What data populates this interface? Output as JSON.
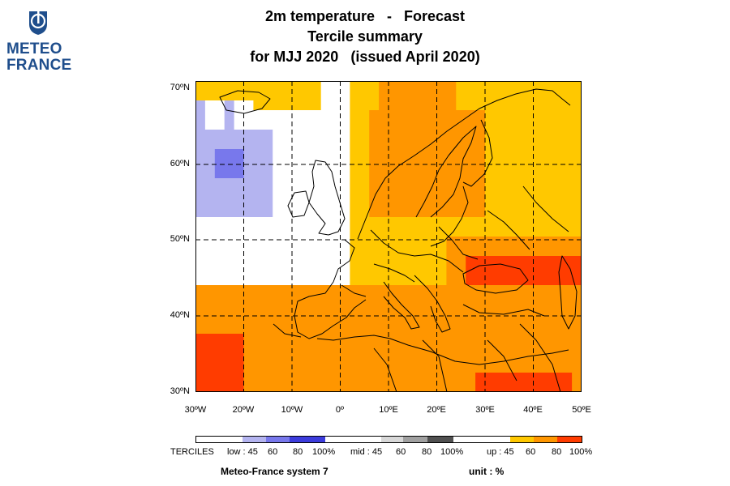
{
  "logo": {
    "line1": "METEO",
    "line2": "FRANCE",
    "color": "#1f4e8c"
  },
  "title": {
    "line1": "2m temperature   -   Forecast",
    "line2": "Tercile summary",
    "line3": "for MJJ 2020   (issued April 2020)"
  },
  "map": {
    "region": "Europe",
    "lon_range": [
      -30,
      50
    ],
    "lat_range": [
      30,
      70
    ],
    "lat_labels": [
      "70ºN",
      "60ºN",
      "50ºN",
      "40ºN",
      "30ºN"
    ],
    "lon_labels": [
      "30ºW",
      "20ºW",
      "10ºW",
      "0º",
      "10ºE",
      "20ºE",
      "30ºE",
      "40ºE",
      "50ºE"
    ],
    "grid": "dashed every 10 degrees"
  },
  "legend": {
    "title": "TERCILES",
    "low_label": "low : 45",
    "mid_label": "mid : 45",
    "up_label": "up : 45",
    "ticks": [
      "60",
      "80",
      "100%"
    ],
    "low_colors": [
      "#b4b4f0",
      "#7878ec",
      "#3c3cdc"
    ],
    "mid_colors": [
      "#d8d8d8",
      "#a0a0a0",
      "#505050"
    ],
    "up_colors": [
      "#ffc800",
      "#ff9600",
      "#ff3c00"
    ]
  },
  "footer": {
    "system": "Meteo-France system 7",
    "unit": "unit : %"
  }
}
